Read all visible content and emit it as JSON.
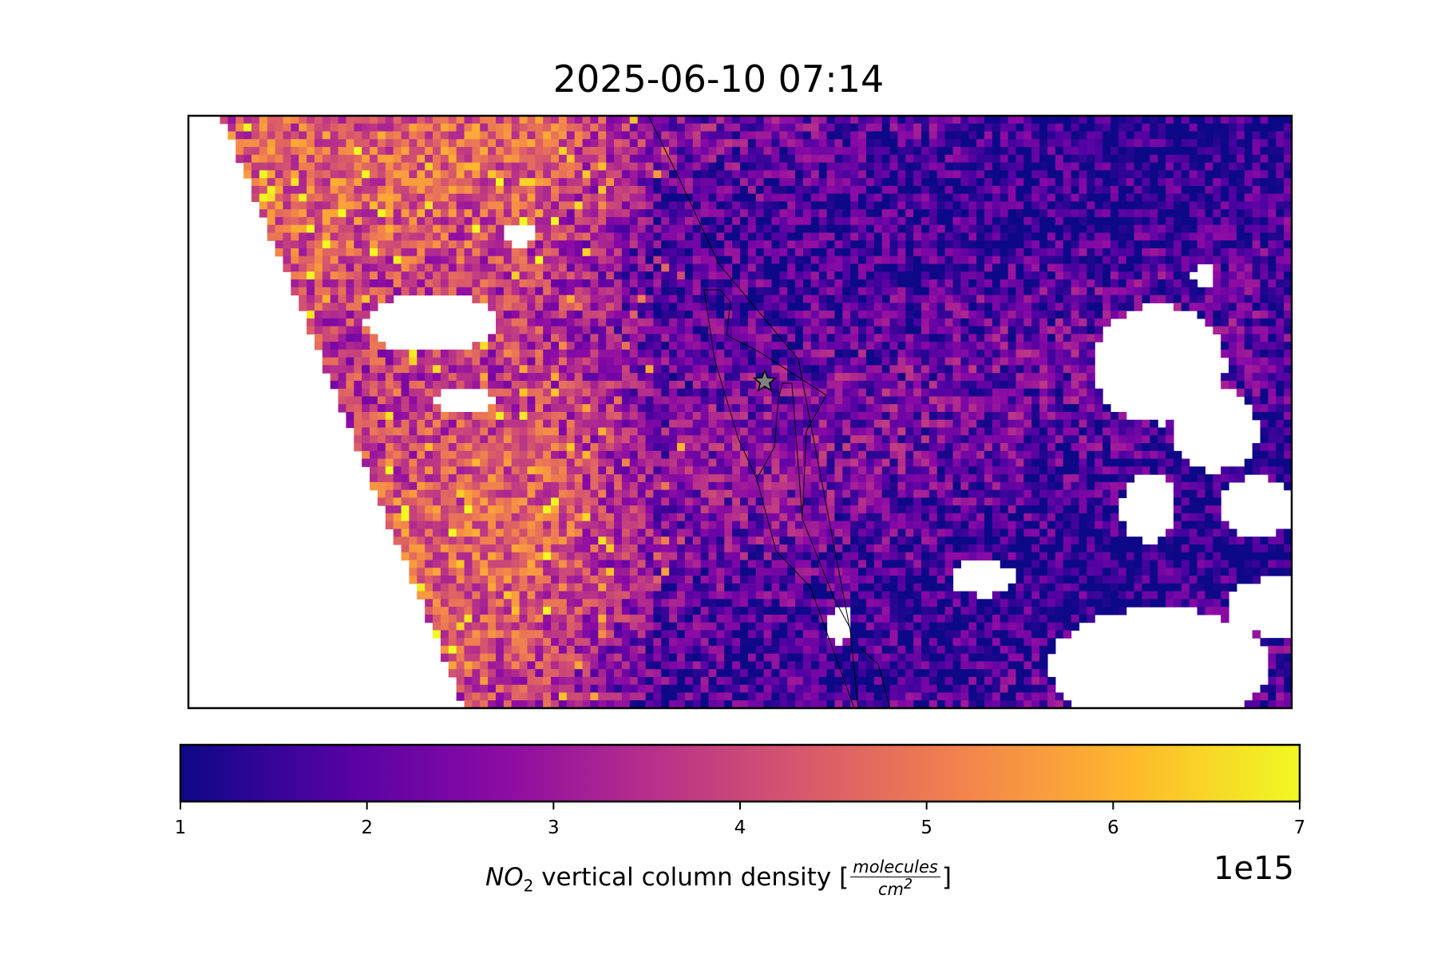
{
  "title": "2025-06-10 07:14",
  "chart_data": {
    "type": "heatmap",
    "title": "2025-06-10 07:14",
    "description_note": "",
    "colormap": "plasma",
    "colorbar": {
      "label_prefix_symbol": "NO",
      "label_prefix_sub": "2",
      "label_text": "vertical column density [",
      "label_unit_num": "molecules",
      "label_unit_den": "cm",
      "label_unit_den_sup": "2",
      "label_close": "]",
      "ticks": [
        "1",
        "2",
        "3",
        "4",
        "5",
        "6",
        "7"
      ],
      "range": [
        1,
        7
      ],
      "exponent": "1e15"
    },
    "marker": "star",
    "colors": {
      "low": "#0d0887",
      "mid": "#cc4778",
      "high": "#f0f921",
      "missing": "#ffffff",
      "marker_fill": "#808080"
    }
  }
}
